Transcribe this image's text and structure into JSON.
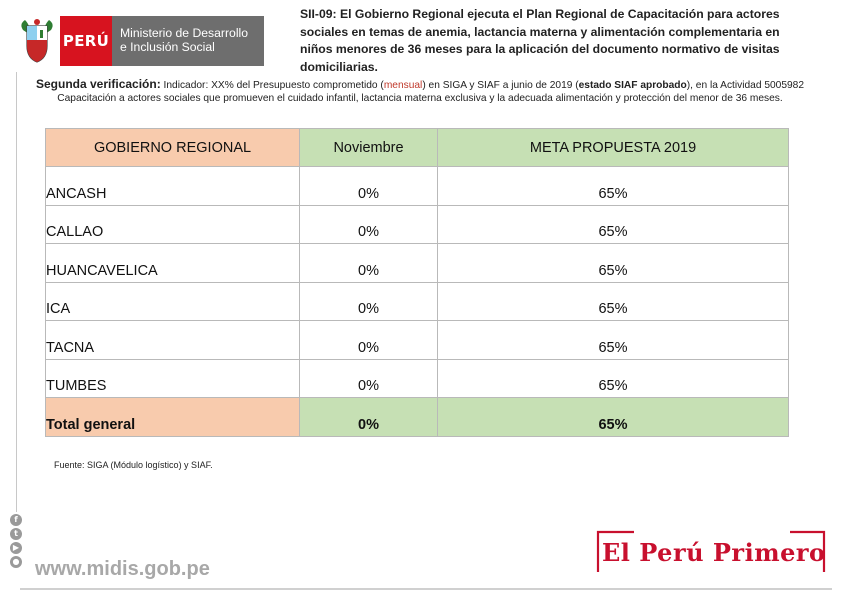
{
  "header": {
    "country": "PERÚ",
    "ministry_line1": "Ministerio de Desarrollo",
    "ministry_line2": "e Inclusión Social",
    "title": "SII-09: El Gobierno Regional ejecuta el Plan Regional de Capacitación para actores sociales en temas de anemia, lactancia materna y alimentación complementaria en niños menores de 36 meses para la aplicación del documento normativo de visitas domiciliarias."
  },
  "verification": {
    "lead": "Segunda verificación:",
    "part1": " Indicador: XX% del Presupuesto comprometido (",
    "mensual": "mensual",
    "part2": ") en SIGA y SIAF a junio de 2019 (",
    "estado": "estado SIAF aprobado",
    "part3": "), en la Actividad 5005982 Capacitación a actores sociales que promueven el cuidado infantil, lactancia materna exclusiva y la adecuada alimentación y protección del menor de 36 meses."
  },
  "table": {
    "headers": [
      "GOBIERNO REGIONAL",
      "Noviembre",
      "META PROPUESTA 2019"
    ],
    "rows": [
      {
        "region": "ANCASH",
        "noviembre": "0%",
        "meta": "65%"
      },
      {
        "region": "CALLAO",
        "noviembre": "0%",
        "meta": "65%"
      },
      {
        "region": "HUANCAVELICA",
        "noviembre": "0%",
        "meta": "65%"
      },
      {
        "region": "ICA",
        "noviembre": "0%",
        "meta": "65%"
      },
      {
        "region": "TACNA",
        "noviembre": "0%",
        "meta": "65%"
      },
      {
        "region": "TUMBES",
        "noviembre": "0%",
        "meta": "65%"
      }
    ],
    "total": {
      "region": "Total general",
      "noviembre": "0%",
      "meta": "65%"
    }
  },
  "source": "Fuente: SIGA (Módulo logístico) y SIAF.",
  "footer": {
    "url": "www.midis.gob.pe",
    "slogan": "El Perú Primero",
    "social_icons": [
      "facebook-icon",
      "twitter-icon",
      "youtube-icon",
      "flickr-icon"
    ]
  },
  "colors": {
    "peru_red": "#d7131f",
    "ministry_gray": "#6e6e6e",
    "header_peach": "#f8cbad",
    "header_green": "#c6e0b4",
    "slogan_red": "#c8102e"
  }
}
